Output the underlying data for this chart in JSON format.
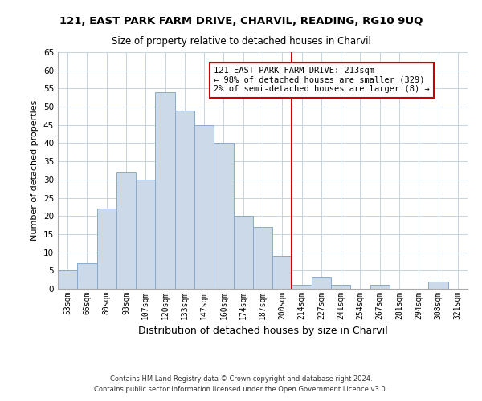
{
  "title": "121, EAST PARK FARM DRIVE, CHARVIL, READING, RG10 9UQ",
  "subtitle": "Size of property relative to detached houses in Charvil",
  "xlabel": "Distribution of detached houses by size in Charvil",
  "ylabel": "Number of detached properties",
  "bar_color": "#ccd9e8",
  "bar_edge_color": "#88aacc",
  "bin_labels": [
    "53sqm",
    "66sqm",
    "80sqm",
    "93sqm",
    "107sqm",
    "120sqm",
    "133sqm",
    "147sqm",
    "160sqm",
    "174sqm",
    "187sqm",
    "200sqm",
    "214sqm",
    "227sqm",
    "241sqm",
    "254sqm",
    "267sqm",
    "281sqm",
    "294sqm",
    "308sqm",
    "321sqm"
  ],
  "bar_heights": [
    5,
    7,
    22,
    32,
    30,
    54,
    49,
    45,
    40,
    20,
    17,
    9,
    1,
    3,
    1,
    0,
    1,
    0,
    0,
    2,
    0
  ],
  "vline_color": "#cc0000",
  "vline_index": 12,
  "ylim": [
    0,
    65
  ],
  "yticks": [
    0,
    5,
    10,
    15,
    20,
    25,
    30,
    35,
    40,
    45,
    50,
    55,
    60,
    65
  ],
  "annotation_text": "121 EAST PARK FARM DRIVE: 213sqm\n← 98% of detached houses are smaller (329)\n2% of semi-detached houses are larger (8) →",
  "annotation_box_color": "#ffffff",
  "annotation_box_edgecolor": "#cc0000",
  "footer_line1": "Contains HM Land Registry data © Crown copyright and database right 2024.",
  "footer_line2": "Contains public sector information licensed under the Open Government Licence v3.0.",
  "background_color": "#ffffff",
  "grid_color": "#c8d4e0"
}
